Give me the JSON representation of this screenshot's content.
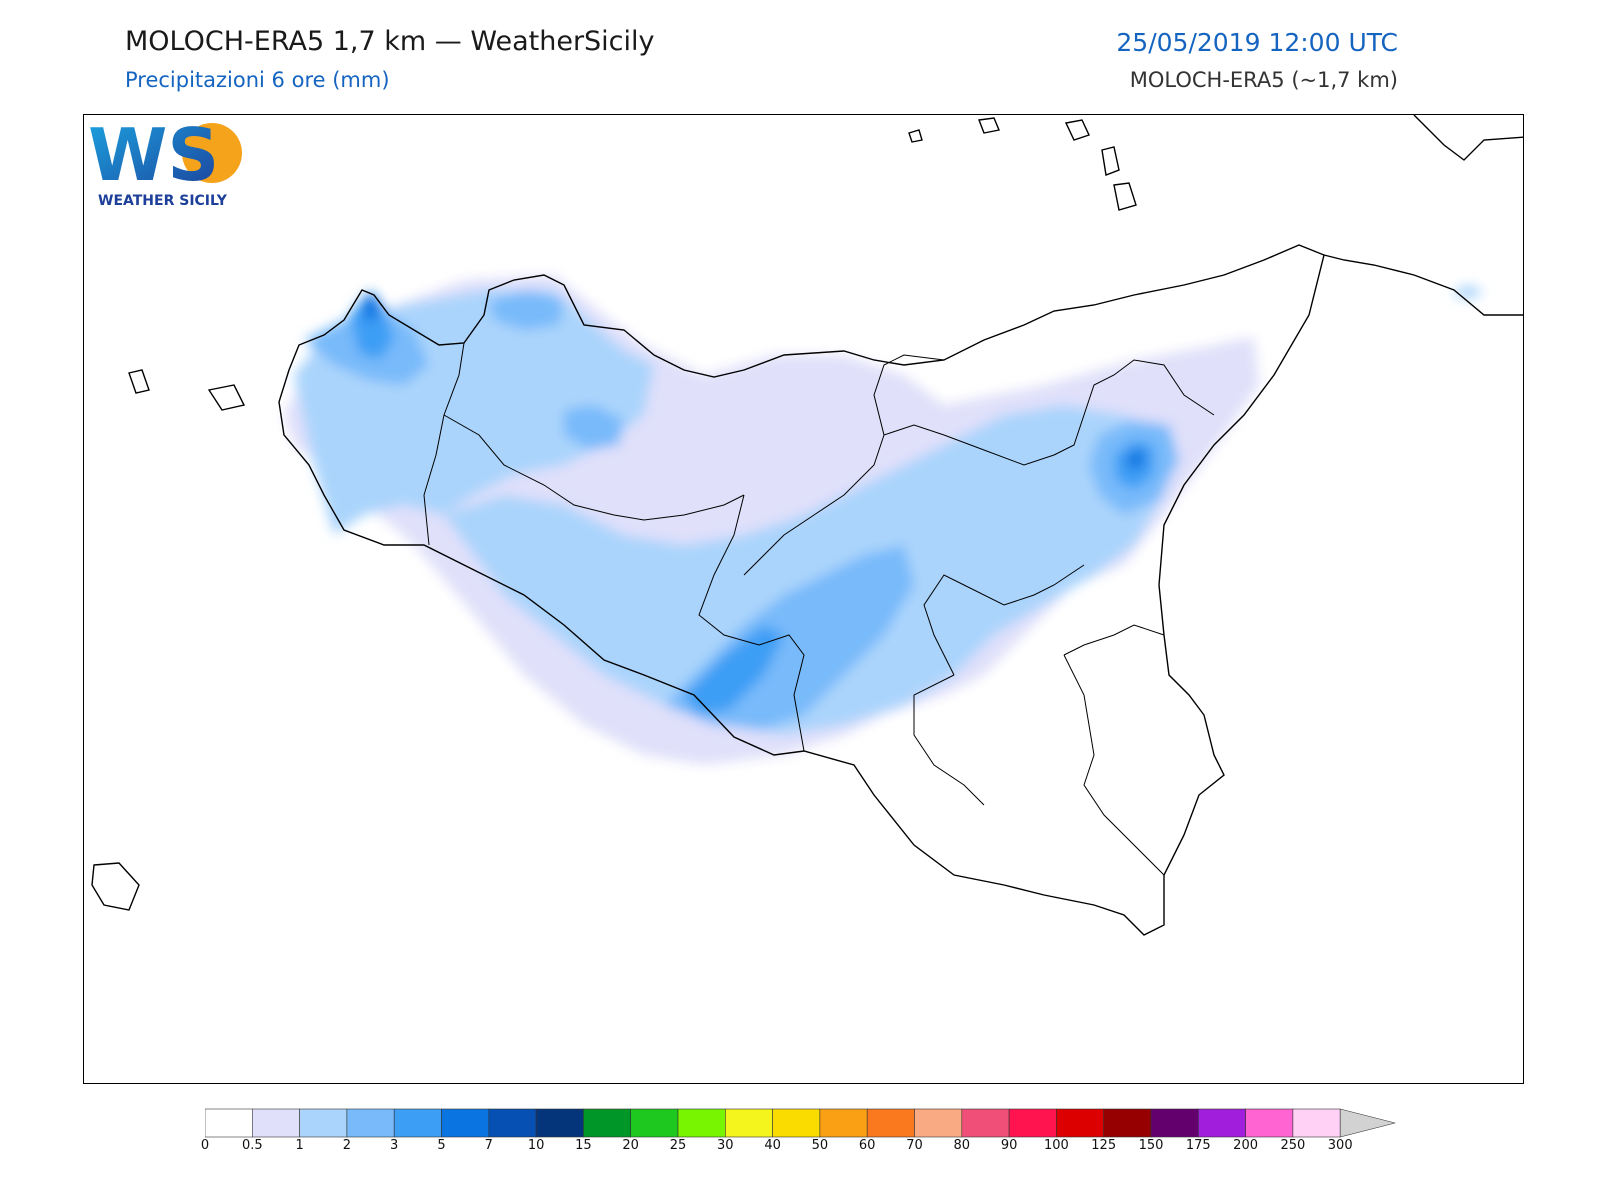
{
  "header": {
    "title": "MOLOCH-ERA5 1,7 km — WeatherSicily",
    "subtitle": "Precipitazioni 6 ore (mm)",
    "datetime": "25/05/2019 12:00 UTC",
    "model": "MOLOCH-ERA5 (~1,7 km)"
  },
  "logo": {
    "mark": "WS",
    "text": "WEATHER SICILY",
    "icon": "ws-sun-drop-logo"
  },
  "legend": {
    "ticks": [
      "0",
      "0.5",
      "1",
      "2",
      "3",
      "5",
      "7",
      "10",
      "15",
      "20",
      "25",
      "30",
      "40",
      "50",
      "60",
      "70",
      "80",
      "90",
      "100",
      "125",
      "150",
      "175",
      "200",
      "250",
      "300"
    ],
    "colors": [
      "#ffffff",
      "#e0e0fa",
      "#aad4fc",
      "#78bafa",
      "#3c9ef5",
      "#0a74e0",
      "#0650b4",
      "#04357a",
      "#009628",
      "#1ec81e",
      "#78f500",
      "#f5f51e",
      "#fadc00",
      "#faa014",
      "#fa781e",
      "#faaa82",
      "#f05078",
      "#ff1450",
      "#dc0000",
      "#960000",
      "#64006e",
      "#a01edc",
      "#ff64d2",
      "#ffd2f5"
    ],
    "extend_color": "#d2d2d2"
  }
}
